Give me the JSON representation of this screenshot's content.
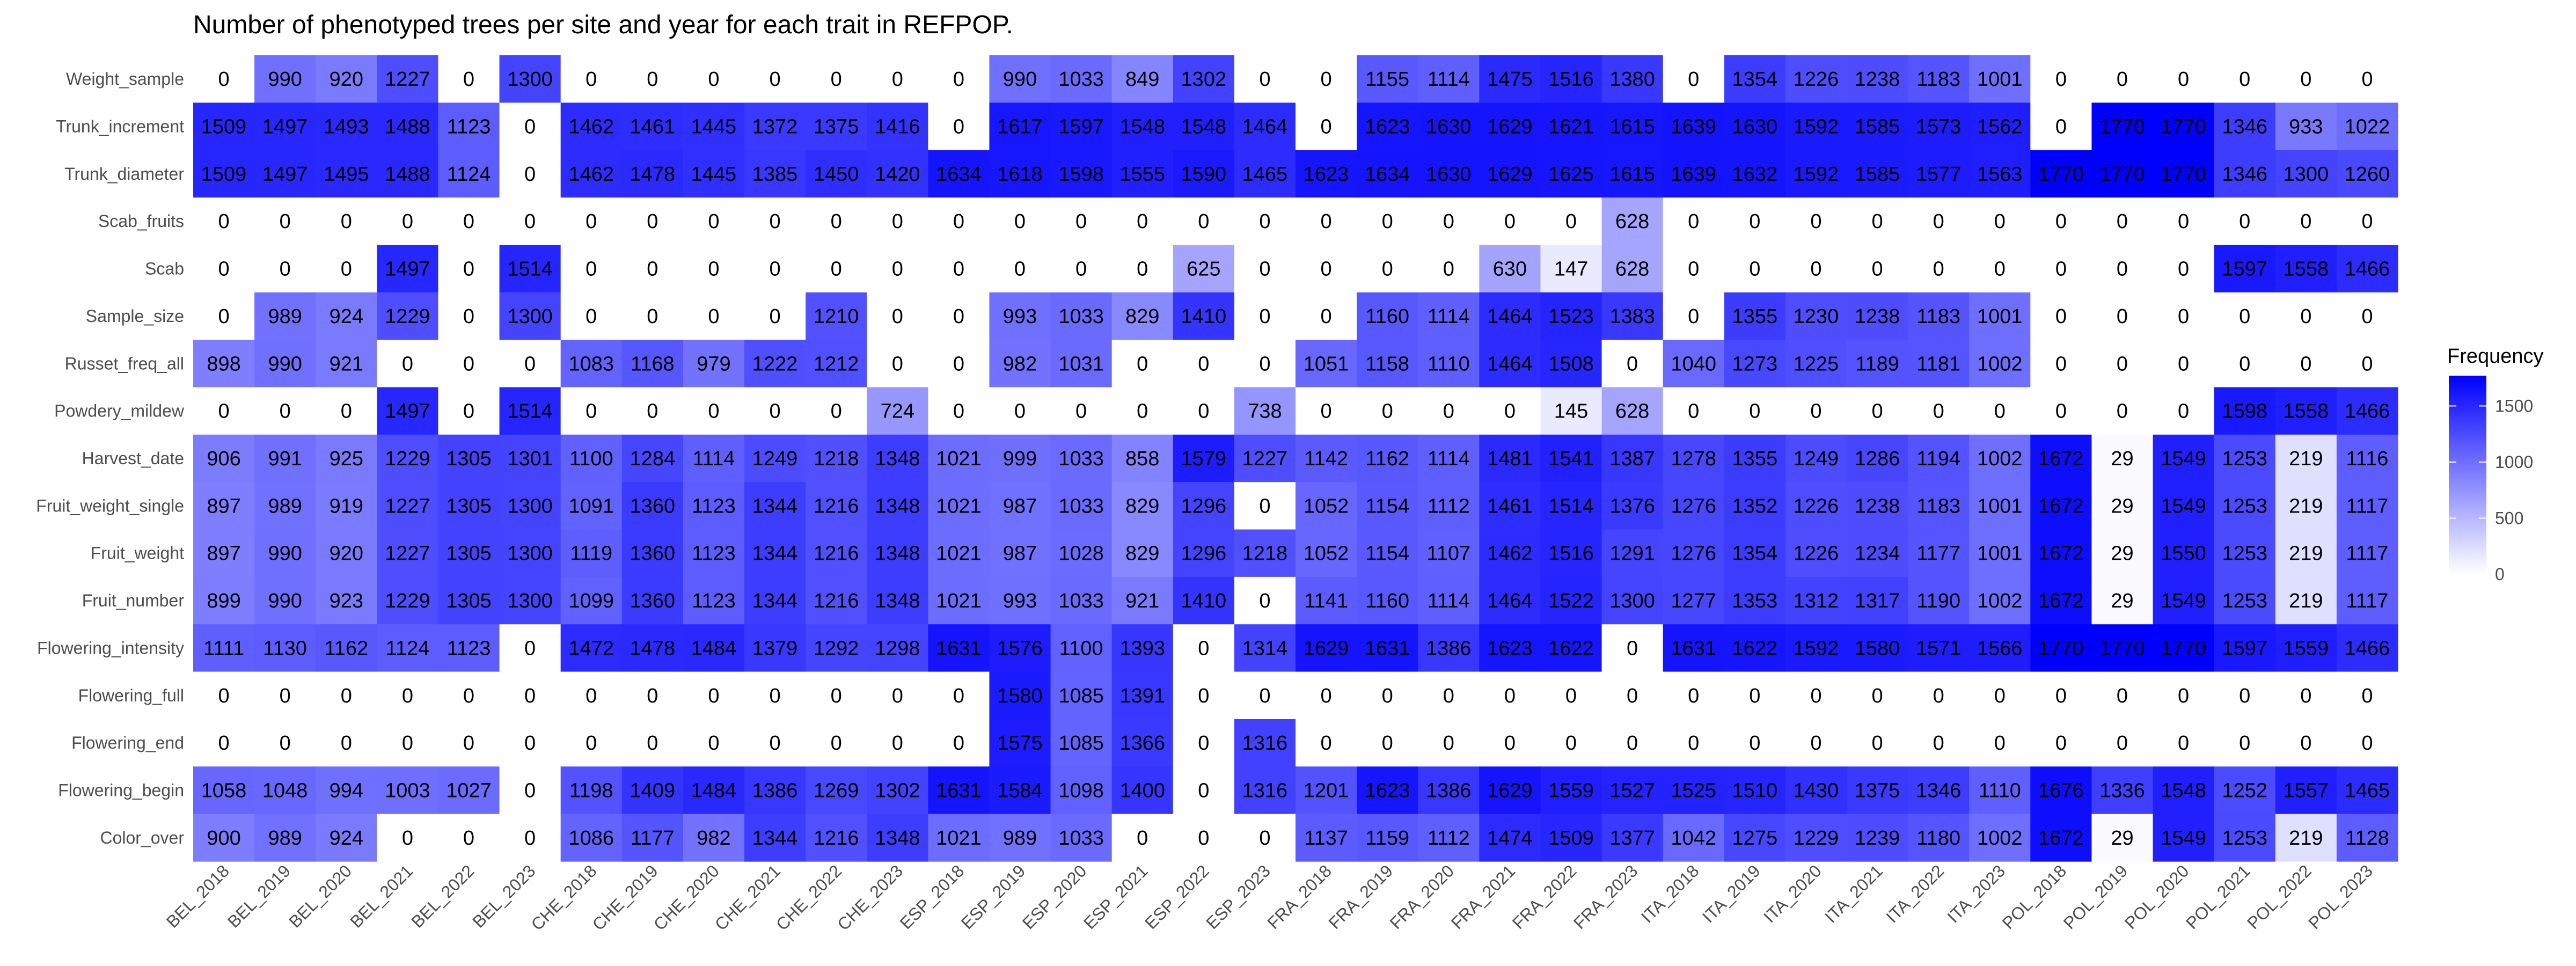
{
  "chart_data": {
    "type": "heatmap",
    "title": "Number of phenotyped trees per site and year for each trait in REFPOP.",
    "xlabel": "",
    "ylabel": "",
    "legend": {
      "title": "Frequency",
      "ticks": [
        0,
        500,
        1000,
        1500
      ],
      "range": [
        0,
        1770
      ],
      "low_color": "#ffffff",
      "high_color": "#0000ff",
      "placement": "right"
    },
    "columns": [
      "BEL_2018",
      "BEL_2019",
      "BEL_2020",
      "BEL_2021",
      "BEL_2022",
      "BEL_2023",
      "CHE_2018",
      "CHE_2019",
      "CHE_2020",
      "CHE_2021",
      "CHE_2022",
      "CHE_2023",
      "ESP_2018",
      "ESP_2019",
      "ESP_2020",
      "ESP_2021",
      "ESP_2022",
      "ESP_2023",
      "FRA_2018",
      "FRA_2019",
      "FRA_2020",
      "FRA_2021",
      "FRA_2022",
      "FRA_2023",
      "ITA_2018",
      "ITA_2019",
      "ITA_2020",
      "ITA_2021",
      "ITA_2022",
      "ITA_2023",
      "POL_2018",
      "POL_2019",
      "POL_2020",
      "POL_2021",
      "POL_2022",
      "POL_2023"
    ],
    "rows": [
      {
        "name": "Weight_sample",
        "values": [
          0,
          990,
          920,
          1227,
          0,
          1300,
          0,
          0,
          0,
          0,
          0,
          0,
          0,
          990,
          1033,
          849,
          1302,
          0,
          0,
          1155,
          1114,
          1475,
          1516,
          1380,
          0,
          1354,
          1226,
          1238,
          1183,
          1001,
          0,
          0,
          0,
          0,
          0,
          0
        ]
      },
      {
        "name": "Trunk_increment",
        "values": [
          1509,
          1497,
          1493,
          1488,
          1123,
          0,
          1462,
          1461,
          1445,
          1372,
          1375,
          1416,
          0,
          1617,
          1597,
          1548,
          1548,
          1464,
          0,
          1623,
          1630,
          1629,
          1621,
          1615,
          1639,
          1630,
          1592,
          1585,
          1573,
          1562,
          0,
          1770,
          1770,
          1346,
          933,
          1022
        ]
      },
      {
        "name": "Trunk_diameter",
        "values": [
          1509,
          1497,
          1495,
          1488,
          1124,
          0,
          1462,
          1478,
          1445,
          1385,
          1450,
          1420,
          1634,
          1618,
          1598,
          1555,
          1590,
          1465,
          1623,
          1634,
          1630,
          1629,
          1625,
          1615,
          1639,
          1632,
          1592,
          1585,
          1577,
          1563,
          1770,
          1770,
          1770,
          1346,
          1300,
          1260
        ]
      },
      {
        "name": "Scab_fruits",
        "values": [
          0,
          0,
          0,
          0,
          0,
          0,
          0,
          0,
          0,
          0,
          0,
          0,
          0,
          0,
          0,
          0,
          0,
          0,
          0,
          0,
          0,
          0,
          0,
          628,
          0,
          0,
          0,
          0,
          0,
          0,
          0,
          0,
          0,
          0,
          0,
          0
        ]
      },
      {
        "name": "Scab",
        "values": [
          0,
          0,
          0,
          1497,
          0,
          1514,
          0,
          0,
          0,
          0,
          0,
          0,
          0,
          0,
          0,
          0,
          625,
          0,
          0,
          0,
          0,
          630,
          147,
          628,
          0,
          0,
          0,
          0,
          0,
          0,
          0,
          0,
          0,
          1597,
          1558,
          1466
        ]
      },
      {
        "name": "Sample_size",
        "values": [
          0,
          989,
          924,
          1229,
          0,
          1300,
          0,
          0,
          0,
          0,
          1210,
          0,
          0,
          993,
          1033,
          829,
          1410,
          0,
          0,
          1160,
          1114,
          1464,
          1523,
          1383,
          0,
          1355,
          1230,
          1238,
          1183,
          1001,
          0,
          0,
          0,
          0,
          0,
          0
        ]
      },
      {
        "name": "Russet_freq_all",
        "values": [
          898,
          990,
          921,
          0,
          0,
          0,
          1083,
          1168,
          979,
          1222,
          1212,
          0,
          0,
          982,
          1031,
          0,
          0,
          0,
          1051,
          1158,
          1110,
          1464,
          1508,
          0,
          1040,
          1273,
          1225,
          1189,
          1181,
          1002,
          0,
          0,
          0,
          0,
          0,
          0
        ]
      },
      {
        "name": "Powdery_mildew",
        "values": [
          0,
          0,
          0,
          1497,
          0,
          1514,
          0,
          0,
          0,
          0,
          0,
          724,
          0,
          0,
          0,
          0,
          0,
          738,
          0,
          0,
          0,
          0,
          145,
          628,
          0,
          0,
          0,
          0,
          0,
          0,
          0,
          0,
          0,
          1598,
          1558,
          1466
        ]
      },
      {
        "name": "Harvest_date",
        "values": [
          906,
          991,
          925,
          1229,
          1305,
          1301,
          1100,
          1284,
          1114,
          1249,
          1218,
          1348,
          1021,
          999,
          1033,
          858,
          1579,
          1227,
          1142,
          1162,
          1114,
          1481,
          1541,
          1387,
          1278,
          1355,
          1249,
          1286,
          1194,
          1002,
          1672,
          29,
          1549,
          1253,
          219,
          1116
        ]
      },
      {
        "name": "Fruit_weight_single",
        "values": [
          897,
          989,
          919,
          1227,
          1305,
          1300,
          1091,
          1360,
          1123,
          1344,
          1216,
          1348,
          1021,
          987,
          1033,
          829,
          1296,
          0,
          1052,
          1154,
          1112,
          1461,
          1514,
          1376,
          1276,
          1352,
          1226,
          1238,
          1183,
          1001,
          1672,
          29,
          1549,
          1253,
          219,
          1117
        ]
      },
      {
        "name": "Fruit_weight",
        "values": [
          897,
          990,
          920,
          1227,
          1305,
          1300,
          1119,
          1360,
          1123,
          1344,
          1216,
          1348,
          1021,
          987,
          1028,
          829,
          1296,
          1218,
          1052,
          1154,
          1107,
          1462,
          1516,
          1291,
          1276,
          1354,
          1226,
          1234,
          1177,
          1001,
          1672,
          29,
          1550,
          1253,
          219,
          1117
        ]
      },
      {
        "name": "Fruit_number",
        "values": [
          899,
          990,
          923,
          1229,
          1305,
          1300,
          1099,
          1360,
          1123,
          1344,
          1216,
          1348,
          1021,
          993,
          1033,
          921,
          1410,
          0,
          1141,
          1160,
          1114,
          1464,
          1522,
          1300,
          1277,
          1353,
          1312,
          1317,
          1190,
          1002,
          1672,
          29,
          1549,
          1253,
          219,
          1117
        ]
      },
      {
        "name": "Flowering_intensity",
        "values": [
          1111,
          1130,
          1162,
          1124,
          1123,
          0,
          1472,
          1478,
          1484,
          1379,
          1292,
          1298,
          1631,
          1576,
          1100,
          1393,
          0,
          1314,
          1629,
          1631,
          1386,
          1623,
          1622,
          0,
          1631,
          1622,
          1592,
          1580,
          1571,
          1566,
          1770,
          1770,
          1770,
          1597,
          1559,
          1466
        ]
      },
      {
        "name": "Flowering_full",
        "values": [
          0,
          0,
          0,
          0,
          0,
          0,
          0,
          0,
          0,
          0,
          0,
          0,
          0,
          1580,
          1085,
          1391,
          0,
          0,
          0,
          0,
          0,
          0,
          0,
          0,
          0,
          0,
          0,
          0,
          0,
          0,
          0,
          0,
          0,
          0,
          0,
          0
        ]
      },
      {
        "name": "Flowering_end",
        "values": [
          0,
          0,
          0,
          0,
          0,
          0,
          0,
          0,
          0,
          0,
          0,
          0,
          0,
          1575,
          1085,
          1366,
          0,
          1316,
          0,
          0,
          0,
          0,
          0,
          0,
          0,
          0,
          0,
          0,
          0,
          0,
          0,
          0,
          0,
          0,
          0,
          0
        ]
      },
      {
        "name": "Flowering_begin",
        "values": [
          1058,
          1048,
          994,
          1003,
          1027,
          0,
          1198,
          1409,
          1484,
          1386,
          1269,
          1302,
          1631,
          1584,
          1098,
          1400,
          0,
          1316,
          1201,
          1623,
          1386,
          1629,
          1559,
          1527,
          1525,
          1510,
          1430,
          1375,
          1346,
          1110,
          1676,
          1336,
          1548,
          1252,
          1557,
          1465
        ]
      },
      {
        "name": "Color_over",
        "values": [
          900,
          989,
          924,
          0,
          0,
          0,
          1086,
          1177,
          982,
          1344,
          1216,
          1348,
          1021,
          989,
          1033,
          0,
          0,
          0,
          1137,
          1159,
          1112,
          1474,
          1509,
          1377,
          1042,
          1275,
          1229,
          1239,
          1180,
          1002,
          1672,
          29,
          1549,
          1253,
          219,
          1128
        ]
      }
    ]
  }
}
